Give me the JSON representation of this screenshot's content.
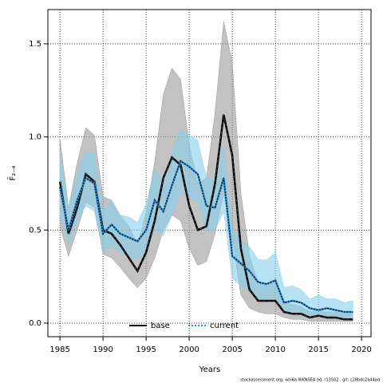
{
  "chart_data": {
    "type": "line",
    "xlabel": "Years",
    "ylabel": "F̄₂₋₄",
    "footer": "stockassessment.org, whi6a WKNSEA hd, r13502 , git: c28bdc2a44ad",
    "x": [
      1985,
      1986,
      1987,
      1988,
      1989,
      1990,
      1991,
      1992,
      1993,
      1994,
      1995,
      1996,
      1997,
      1998,
      1999,
      2000,
      2001,
      2002,
      2003,
      2004,
      2005,
      2006,
      2007,
      2008,
      2009,
      2010,
      2011,
      2012,
      2013,
      2014,
      2015,
      2016,
      2017,
      2018,
      2019
    ],
    "series": [
      {
        "name": "base",
        "color": "#000000",
        "band_color": "#9a9a9a",
        "values": [
          0.76,
          0.48,
          0.62,
          0.8,
          0.76,
          0.5,
          0.48,
          0.42,
          0.35,
          0.28,
          0.38,
          0.55,
          0.78,
          0.89,
          0.85,
          0.63,
          0.5,
          0.52,
          0.75,
          1.12,
          0.9,
          0.4,
          0.18,
          0.12,
          0.12,
          0.12,
          0.06,
          0.05,
          0.05,
          0.03,
          0.04,
          0.03,
          0.03,
          0.02,
          0.02
        ],
        "low": [
          0.52,
          0.36,
          0.5,
          0.65,
          0.62,
          0.37,
          0.35,
          0.3,
          0.24,
          0.19,
          0.24,
          0.35,
          0.5,
          0.58,
          0.55,
          0.4,
          0.31,
          0.33,
          0.48,
          0.7,
          0.45,
          0.15,
          0.08,
          0.06,
          0.05,
          0.05,
          0.03,
          0.02,
          0.02,
          0.01,
          0.01,
          0.01,
          0.01,
          0.01,
          0.01
        ],
        "high": [
          0.99,
          0.62,
          0.86,
          1.05,
          1.01,
          0.68,
          0.66,
          0.58,
          0.52,
          0.42,
          0.59,
          0.87,
          1.23,
          1.37,
          1.31,
          0.96,
          0.75,
          0.78,
          1.13,
          1.62,
          1.4,
          0.7,
          0.36,
          0.22,
          0.2,
          0.22,
          0.11,
          0.1,
          0.09,
          0.06,
          0.07,
          0.06,
          0.06,
          0.05,
          0.05
        ]
      },
      {
        "name": "current",
        "color": "#2a8fd0",
        "band_color": "#87ceeb",
        "values": [
          0.73,
          0.5,
          0.66,
          0.78,
          0.75,
          0.48,
          0.53,
          0.48,
          0.46,
          0.44,
          0.5,
          0.66,
          0.6,
          0.74,
          0.87,
          0.84,
          0.8,
          0.63,
          0.62,
          0.78,
          0.36,
          0.32,
          0.28,
          0.22,
          0.21,
          0.23,
          0.11,
          0.12,
          0.11,
          0.08,
          0.07,
          0.08,
          0.07,
          0.06,
          0.06
        ],
        "low": [
          0.58,
          0.42,
          0.55,
          0.63,
          0.6,
          0.38,
          0.42,
          0.38,
          0.36,
          0.34,
          0.38,
          0.5,
          0.47,
          0.58,
          0.7,
          0.68,
          0.65,
          0.5,
          0.5,
          0.6,
          0.24,
          0.2,
          0.17,
          0.13,
          0.13,
          0.14,
          0.06,
          0.06,
          0.05,
          0.04,
          0.04,
          0.04,
          0.03,
          0.03,
          0.03
        ],
        "high": [
          0.93,
          0.62,
          0.8,
          0.92,
          0.91,
          0.6,
          0.66,
          0.58,
          0.57,
          0.54,
          0.64,
          0.83,
          0.76,
          0.92,
          1.04,
          1.01,
          0.98,
          0.78,
          0.77,
          0.96,
          0.5,
          0.45,
          0.41,
          0.34,
          0.34,
          0.38,
          0.19,
          0.2,
          0.18,
          0.13,
          0.15,
          0.13,
          0.13,
          0.11,
          0.12
        ]
      }
    ],
    "xlim": [
      1983.6,
      2021.1
    ],
    "ylim": [
      -0.073,
      1.684
    ],
    "xticks": [
      1985,
      1990,
      1995,
      2000,
      2005,
      2010,
      2015,
      2020
    ],
    "yticks": [
      {
        "value": 0,
        "label": "0.0"
      },
      {
        "value": 0.5,
        "label": "0.5"
      },
      {
        "value": 1,
        "label": "1.0"
      },
      {
        "value": 1.5,
        "label": "1.5"
      }
    ],
    "grid": true,
    "legend": "bottom"
  }
}
